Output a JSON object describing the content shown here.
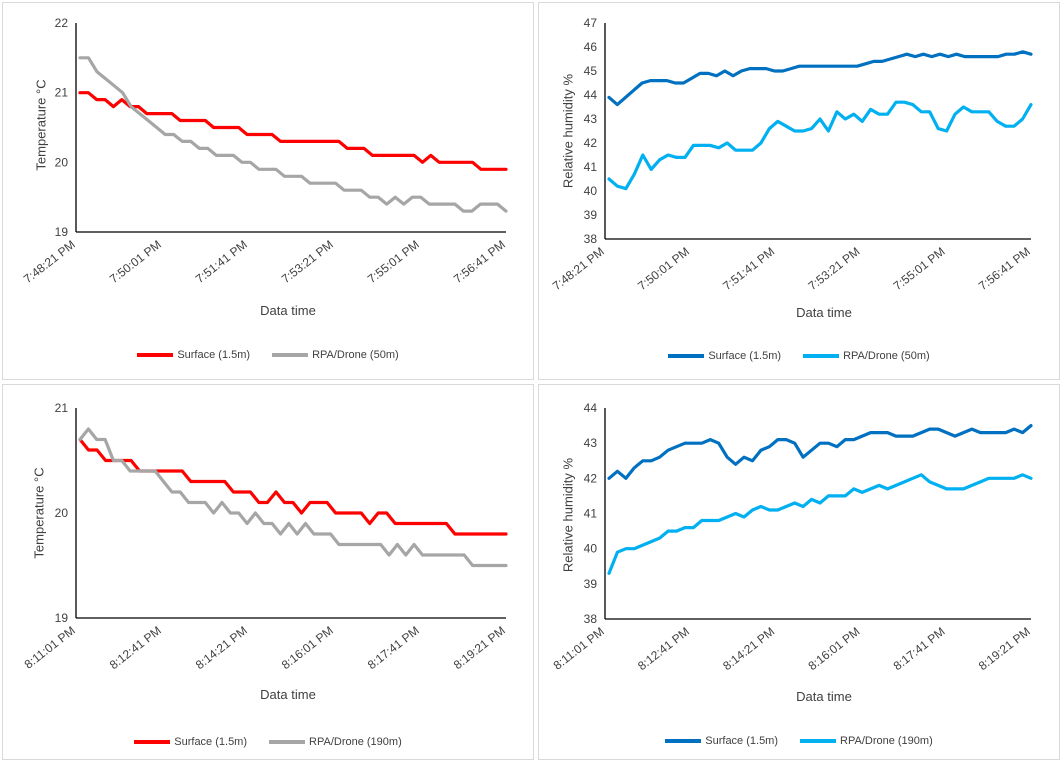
{
  "chart_data": [
    {
      "type": "line",
      "xlabel": "Data time",
      "ylabel": "Temperature °C",
      "ylim": [
        19,
        22
      ],
      "yticks": [
        19,
        20,
        21,
        22
      ],
      "xticks": [
        "7:48:21 PM",
        "7:50:01 PM",
        "7:51:41 PM",
        "7:53:21 PM",
        "7:55:01 PM",
        "7:56:41 PM"
      ],
      "series": [
        {
          "name": "Surface (1.5m)",
          "color": "#ff0000",
          "values": [
            21.0,
            21.0,
            20.9,
            20.9,
            20.8,
            20.9,
            20.8,
            20.8,
            20.7,
            20.7,
            20.7,
            20.7,
            20.6,
            20.6,
            20.6,
            20.6,
            20.5,
            20.5,
            20.5,
            20.5,
            20.4,
            20.4,
            20.4,
            20.4,
            20.3,
            20.3,
            20.3,
            20.3,
            20.3,
            20.3,
            20.3,
            20.3,
            20.2,
            20.2,
            20.2,
            20.1,
            20.1,
            20.1,
            20.1,
            20.1,
            20.1,
            20.0,
            20.1,
            20.0,
            20.0,
            20.0,
            20.0,
            20.0,
            19.9,
            19.9,
            19.9,
            19.9
          ]
        },
        {
          "name": "RPA/Drone (50m)",
          "color": "#a6a6a6",
          "values": [
            21.5,
            21.5,
            21.3,
            21.2,
            21.1,
            21.0,
            20.8,
            20.7,
            20.6,
            20.5,
            20.4,
            20.4,
            20.3,
            20.3,
            20.2,
            20.2,
            20.1,
            20.1,
            20.1,
            20.0,
            20.0,
            19.9,
            19.9,
            19.9,
            19.8,
            19.8,
            19.8,
            19.7,
            19.7,
            19.7,
            19.7,
            19.6,
            19.6,
            19.6,
            19.5,
            19.5,
            19.4,
            19.5,
            19.4,
            19.5,
            19.5,
            19.4,
            19.4,
            19.4,
            19.4,
            19.3,
            19.3,
            19.4,
            19.4,
            19.4,
            19.3
          ]
        }
      ]
    },
    {
      "type": "line",
      "xlabel": "Data time",
      "ylabel": "Relative humidity %",
      "ylim": [
        38,
        47
      ],
      "yticks": [
        38,
        39,
        40,
        41,
        42,
        43,
        44,
        45,
        46,
        47
      ],
      "xticks": [
        "7:48:21 PM",
        "7:50:01 PM",
        "7:51:41 PM",
        "7:53:21 PM",
        "7:55:01 PM",
        "7:56:41 PM"
      ],
      "series": [
        {
          "name": "Surface (1.5m)",
          "color": "#0070c0",
          "values": [
            43.9,
            43.6,
            43.9,
            44.2,
            44.5,
            44.6,
            44.6,
            44.6,
            44.5,
            44.5,
            44.7,
            44.9,
            44.9,
            44.8,
            45.0,
            44.8,
            45.0,
            45.1,
            45.1,
            45.1,
            45.0,
            45.0,
            45.1,
            45.2,
            45.2,
            45.2,
            45.2,
            45.2,
            45.2,
            45.2,
            45.2,
            45.3,
            45.4,
            45.4,
            45.5,
            45.6,
            45.7,
            45.6,
            45.7,
            45.6,
            45.7,
            45.6,
            45.7,
            45.6,
            45.6,
            45.6,
            45.6,
            45.6,
            45.7,
            45.7,
            45.8,
            45.7
          ]
        },
        {
          "name": "RPA/Drone (50m)",
          "color": "#00b0f0",
          "values": [
            40.5,
            40.2,
            40.1,
            40.7,
            41.5,
            40.9,
            41.3,
            41.5,
            41.4,
            41.4,
            41.9,
            41.9,
            41.9,
            41.8,
            42.0,
            41.7,
            41.7,
            41.7,
            42.0,
            42.6,
            42.9,
            42.7,
            42.5,
            42.5,
            42.6,
            43.0,
            42.5,
            43.3,
            43.0,
            43.2,
            42.9,
            43.4,
            43.2,
            43.2,
            43.7,
            43.7,
            43.6,
            43.3,
            43.3,
            42.6,
            42.5,
            43.2,
            43.5,
            43.3,
            43.3,
            43.3,
            42.9,
            42.7,
            42.7,
            43.0,
            43.6
          ]
        }
      ]
    },
    {
      "type": "line",
      "xlabel": "Data time",
      "ylabel": "Temperature °C",
      "ylim": [
        19,
        21
      ],
      "yticks": [
        19,
        20,
        21
      ],
      "xticks": [
        "8:11:01 PM",
        "8:12:41 PM",
        "8:14:21 PM",
        "8:16:01 PM",
        "8:17:41 PM",
        "8:19:21 PM"
      ],
      "series": [
        {
          "name": "Surface (1.5m)",
          "color": "#ff0000",
          "values": [
            20.7,
            20.6,
            20.6,
            20.5,
            20.5,
            20.5,
            20.5,
            20.4,
            20.4,
            20.4,
            20.4,
            20.4,
            20.4,
            20.3,
            20.3,
            20.3,
            20.3,
            20.3,
            20.2,
            20.2,
            20.2,
            20.1,
            20.1,
            20.2,
            20.1,
            20.1,
            20.0,
            20.1,
            20.1,
            20.1,
            20.0,
            20.0,
            20.0,
            20.0,
            19.9,
            20.0,
            20.0,
            19.9,
            19.9,
            19.9,
            19.9,
            19.9,
            19.9,
            19.9,
            19.8,
            19.8,
            19.8,
            19.8,
            19.8,
            19.8,
            19.8
          ]
        },
        {
          "name": "RPA/Drone (190m)",
          "color": "#a6a6a6",
          "values": [
            20.7,
            20.8,
            20.7,
            20.7,
            20.5,
            20.5,
            20.4,
            20.4,
            20.4,
            20.4,
            20.3,
            20.2,
            20.2,
            20.1,
            20.1,
            20.1,
            20.0,
            20.1,
            20.0,
            20.0,
            19.9,
            20.0,
            19.9,
            19.9,
            19.8,
            19.9,
            19.8,
            19.9,
            19.8,
            19.8,
            19.8,
            19.7,
            19.7,
            19.7,
            19.7,
            19.7,
            19.7,
            19.6,
            19.7,
            19.6,
            19.7,
            19.6,
            19.6,
            19.6,
            19.6,
            19.6,
            19.6,
            19.5,
            19.5,
            19.5,
            19.5,
            19.5
          ]
        }
      ]
    },
    {
      "type": "line",
      "xlabel": "Data time",
      "ylabel": "Relative humidity %",
      "ylim": [
        38,
        44
      ],
      "yticks": [
        38,
        39,
        40,
        41,
        42,
        43,
        44
      ],
      "xticks": [
        "8:11:01 PM",
        "8:12:41 PM",
        "8:14:21 PM",
        "8:16:01 PM",
        "8:17:41 PM",
        "8:19:21 PM"
      ],
      "series": [
        {
          "name": "Surface (1.5m)",
          "color": "#0070c0",
          "values": [
            42.0,
            42.2,
            42.0,
            42.3,
            42.5,
            42.5,
            42.6,
            42.8,
            42.9,
            43.0,
            43.0,
            43.0,
            43.1,
            43.0,
            42.6,
            42.4,
            42.6,
            42.5,
            42.8,
            42.9,
            43.1,
            43.1,
            43.0,
            42.6,
            42.8,
            43.0,
            43.0,
            42.9,
            43.1,
            43.1,
            43.2,
            43.3,
            43.3,
            43.3,
            43.2,
            43.2,
            43.2,
            43.3,
            43.4,
            43.4,
            43.3,
            43.2,
            43.3,
            43.4,
            43.3,
            43.3,
            43.3,
            43.3,
            43.4,
            43.3,
            43.5
          ]
        },
        {
          "name": "RPA/Drone (190m)",
          "color": "#00b0f0",
          "values": [
            39.3,
            39.9,
            40.0,
            40.0,
            40.1,
            40.2,
            40.3,
            40.5,
            40.5,
            40.6,
            40.6,
            40.8,
            40.8,
            40.8,
            40.9,
            41.0,
            40.9,
            41.1,
            41.2,
            41.1,
            41.1,
            41.2,
            41.3,
            41.2,
            41.4,
            41.3,
            41.5,
            41.5,
            41.5,
            41.7,
            41.6,
            41.7,
            41.8,
            41.7,
            41.8,
            41.9,
            42.0,
            42.1,
            41.9,
            41.8,
            41.7,
            41.7,
            41.7,
            41.8,
            41.9,
            42.0,
            42.0,
            42.0,
            42.0,
            42.1,
            42.0
          ]
        }
      ]
    }
  ]
}
